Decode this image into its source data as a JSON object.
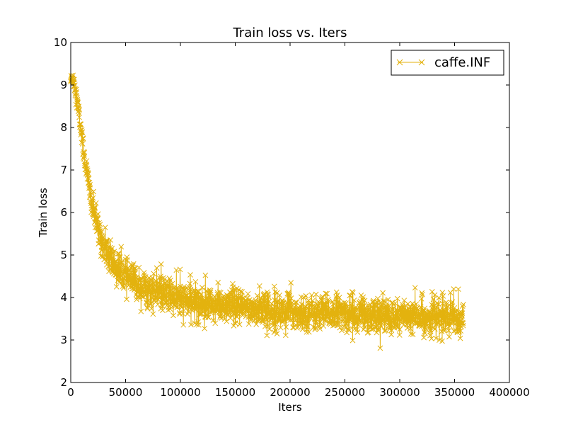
{
  "chart_data": {
    "type": "line",
    "title": "Train loss  vs. Iters",
    "xlabel": "Iters",
    "ylabel": "Train loss",
    "xlim": [
      0,
      400000
    ],
    "ylim": [
      2,
      10
    ],
    "xticks": [
      0,
      50000,
      100000,
      150000,
      200000,
      250000,
      300000,
      350000,
      400000
    ],
    "yticks": [
      2,
      3,
      4,
      5,
      6,
      7,
      8,
      9,
      10
    ],
    "grid": false,
    "legend_position": "top-right",
    "marker": "x",
    "series": [
      {
        "name": "caffe.INF",
        "color": "#e3b20e",
        "x": [
          0,
          2000,
          5000,
          8000,
          10000,
          12000,
          15000,
          18000,
          20000,
          23000,
          25000,
          28000,
          30000,
          35000,
          40000,
          45000,
          50000,
          55000,
          60000,
          65000,
          70000,
          75000,
          80000,
          90000,
          100000,
          110000,
          120000,
          130000,
          140000,
          150000,
          160000,
          170000,
          180000,
          190000,
          200000,
          210000,
          220000,
          230000,
          240000,
          250000,
          260000,
          270000,
          280000,
          290000,
          300000,
          310000,
          320000,
          330000,
          340000,
          350000,
          358000
        ],
        "y": [
          9.1,
          9.2,
          8.8,
          8.2,
          7.8,
          7.4,
          6.9,
          6.4,
          6.1,
          5.8,
          5.6,
          5.4,
          5.2,
          4.95,
          4.75,
          4.6,
          4.5,
          4.4,
          4.32,
          4.25,
          4.2,
          4.15,
          4.1,
          4.02,
          3.95,
          3.9,
          3.86,
          3.82,
          3.79,
          3.76,
          3.74,
          3.72,
          3.7,
          3.68,
          3.67,
          3.65,
          3.64,
          3.63,
          3.62,
          3.61,
          3.6,
          3.59,
          3.58,
          3.57,
          3.56,
          3.55,
          3.54,
          3.53,
          3.52,
          3.5,
          3.5
        ],
        "noise": [
          0.15,
          0.2,
          0.25,
          0.3,
          0.3,
          0.32,
          0.35,
          0.35,
          0.38,
          0.4,
          0.4,
          0.42,
          0.45,
          0.45,
          0.45,
          0.45,
          0.45,
          0.45,
          0.45,
          0.45,
          0.45,
          0.45,
          0.45,
          0.45,
          0.45,
          0.45,
          0.45,
          0.45,
          0.45,
          0.45,
          0.45,
          0.45,
          0.45,
          0.45,
          0.45,
          0.45,
          0.45,
          0.45,
          0.45,
          0.45,
          0.45,
          0.45,
          0.45,
          0.45,
          0.45,
          0.45,
          0.45,
          0.45,
          0.45,
          0.45,
          0.45
        ]
      }
    ]
  }
}
